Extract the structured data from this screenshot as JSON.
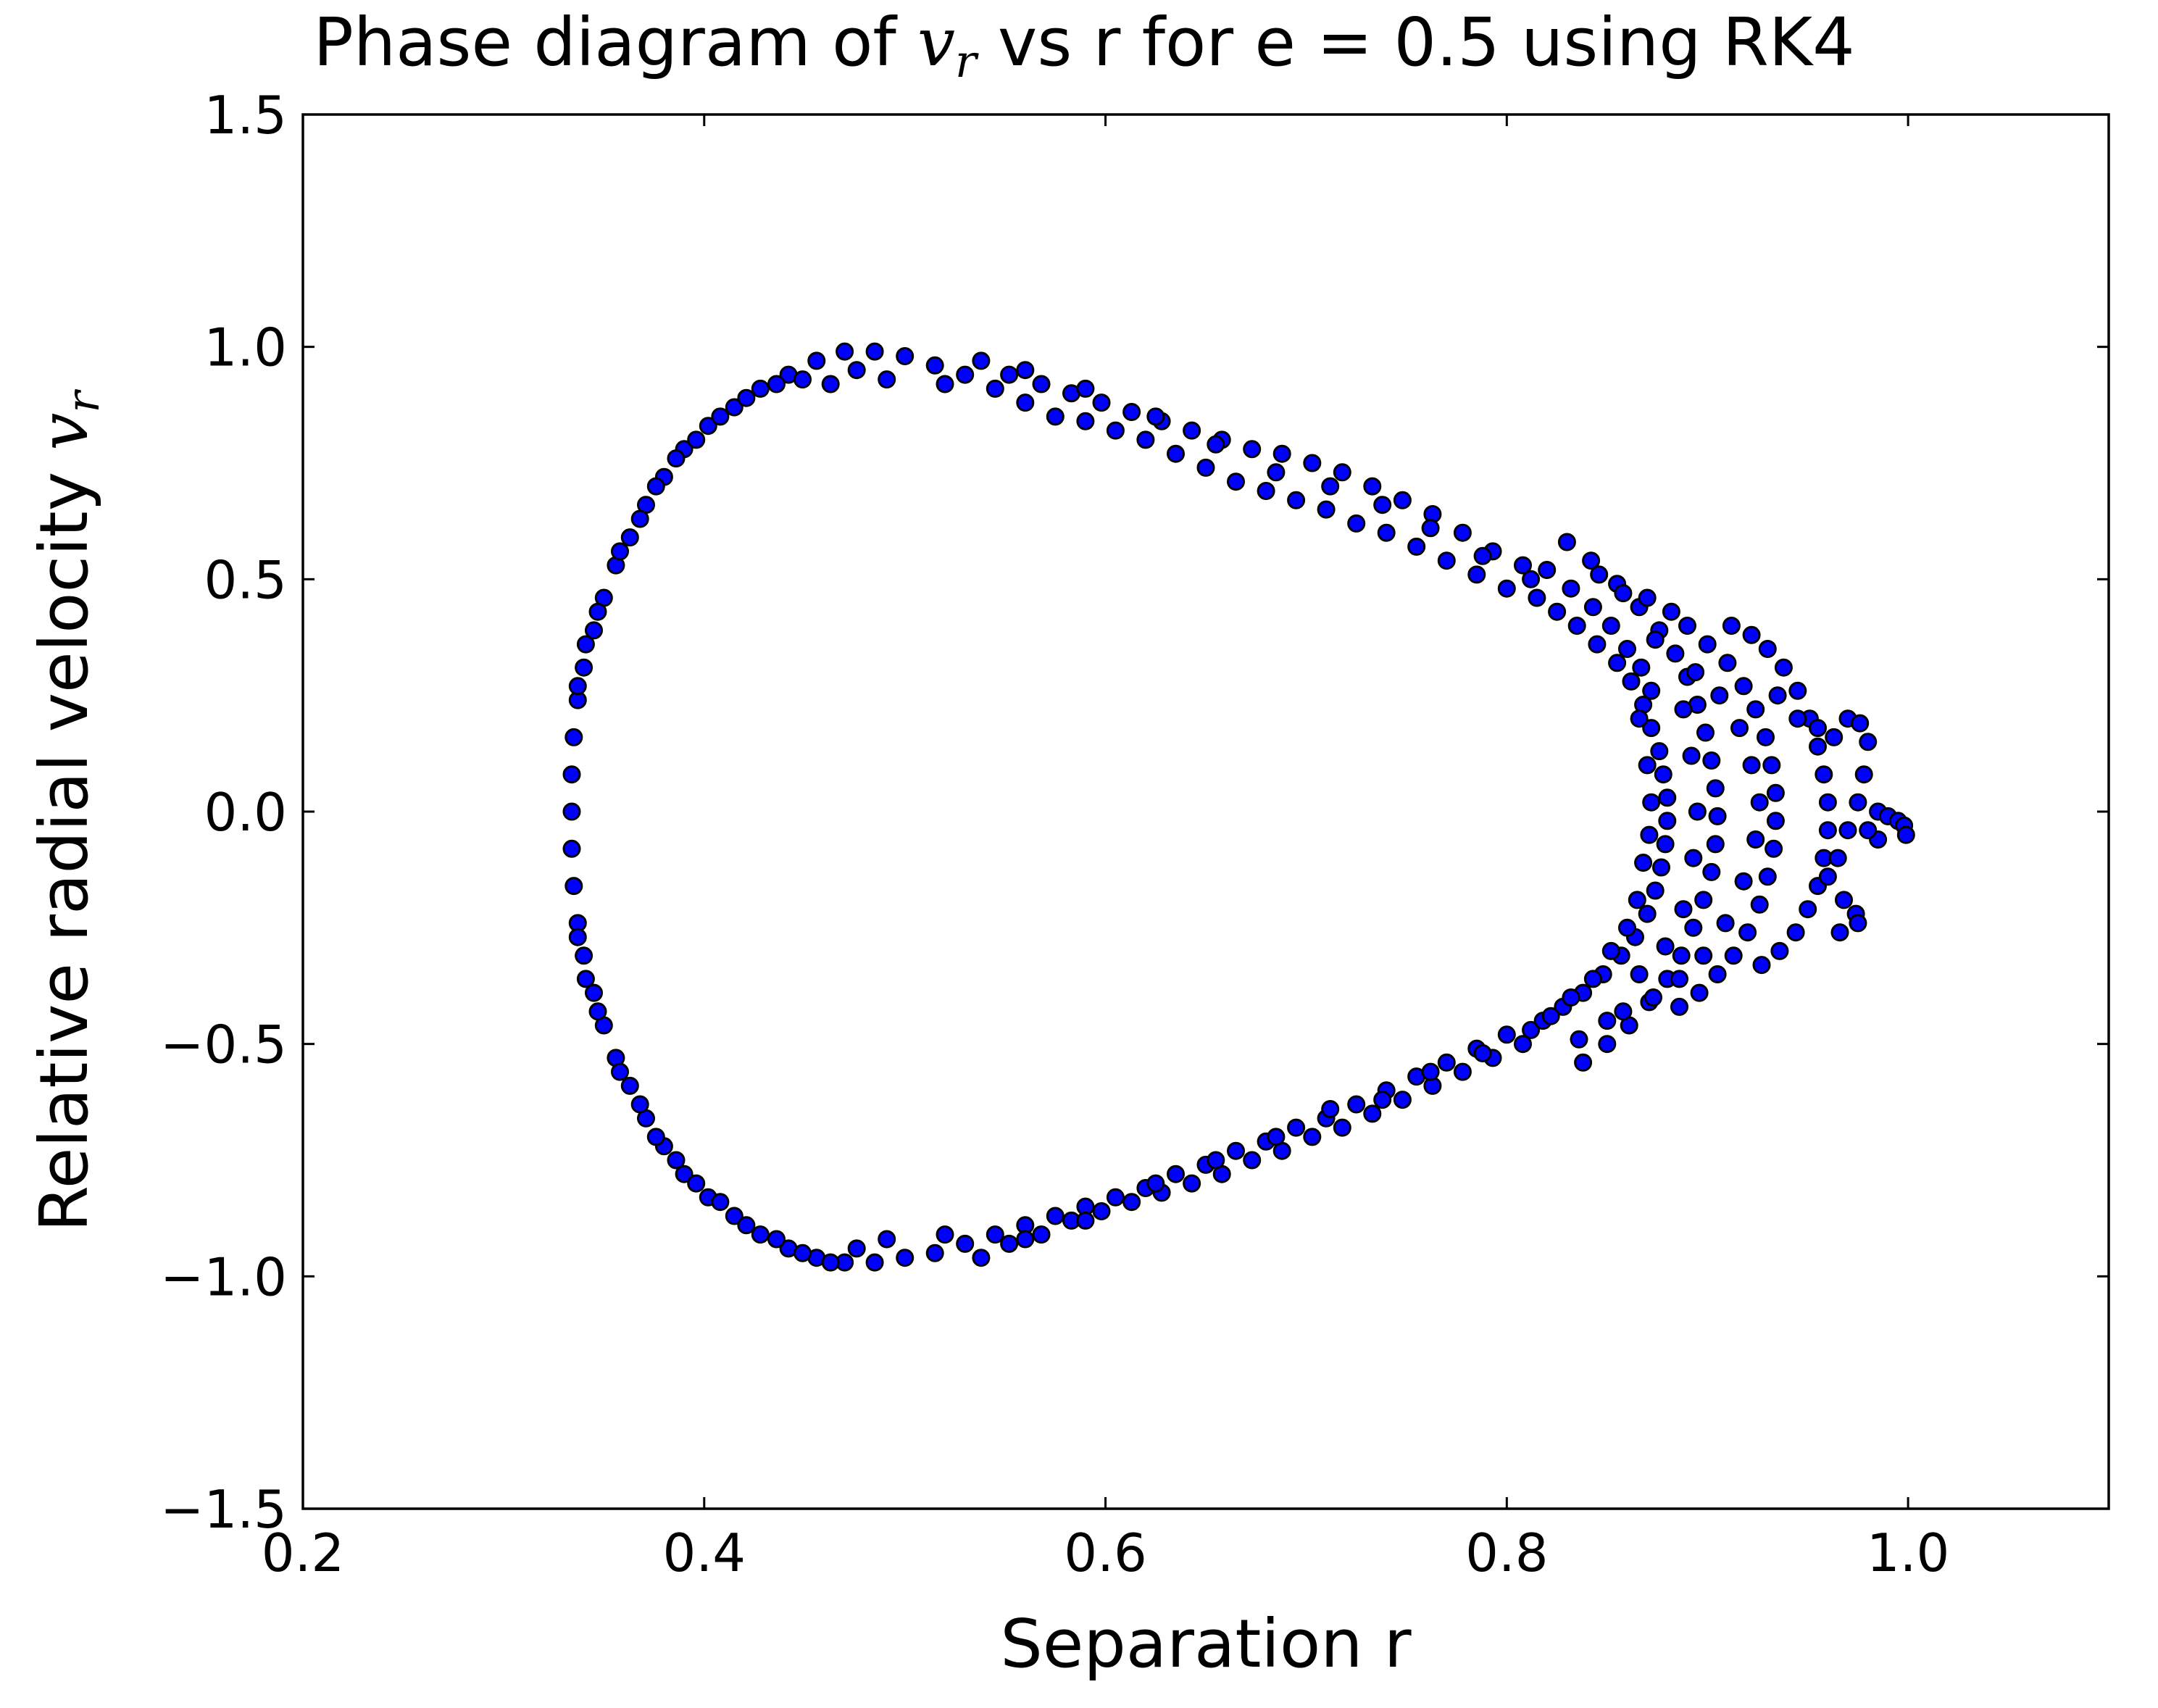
{
  "chart_data": {
    "type": "scatter",
    "title": {
      "prefix": "Phase diagram of ",
      "math_var": "v",
      "math_sub": "r",
      "suffix": " vs r for e = 0.5 using RK4"
    },
    "xlabel": "Separation r",
    "ylabel": {
      "prefix": "Relative radial velocity ",
      "math_var": "v",
      "math_sub": "r"
    },
    "xlim": [
      0.2,
      1.1
    ],
    "ylim": [
      -1.5,
      1.5
    ],
    "xticks": [
      "0.2",
      "0.4",
      "0.6",
      "0.8",
      "1.0"
    ],
    "yticks": [
      "−1.5",
      "−1.0",
      "−0.5",
      "0.0",
      "0.5",
      "1.0",
      "1.5"
    ],
    "grid": false,
    "marker": {
      "shape": "circle",
      "fill": "#0000ff",
      "edge": "#000000"
    },
    "series": [
      {
        "points": [
          [
            0.334,
            0.0
          ],
          [
            0.334,
            0.08
          ],
          [
            0.335,
            0.16
          ],
          [
            0.337,
            0.24
          ],
          [
            0.34,
            0.31
          ],
          [
            0.345,
            0.39
          ],
          [
            0.35,
            0.46
          ],
          [
            0.356,
            0.53
          ],
          [
            0.363,
            0.59
          ],
          [
            0.371,
            0.66
          ],
          [
            0.38,
            0.72
          ],
          [
            0.39,
            0.78
          ],
          [
            0.402,
            0.83
          ],
          [
            0.415,
            0.87
          ],
          [
            0.428,
            0.91
          ],
          [
            0.442,
            0.94
          ],
          [
            0.456,
            0.97
          ],
          [
            0.47,
            0.99
          ],
          [
            0.485,
            0.99
          ],
          [
            0.5,
            0.98
          ],
          [
            0.334,
            -0.08
          ],
          [
            0.335,
            -0.16
          ],
          [
            0.337,
            -0.24
          ],
          [
            0.34,
            -0.31
          ],
          [
            0.345,
            -0.39
          ],
          [
            0.35,
            -0.46
          ],
          [
            0.356,
            -0.53
          ],
          [
            0.363,
            -0.59
          ],
          [
            0.371,
            -0.66
          ],
          [
            0.38,
            -0.72
          ],
          [
            0.39,
            -0.78
          ],
          [
            0.402,
            -0.83
          ],
          [
            0.415,
            -0.87
          ],
          [
            0.428,
            -0.91
          ],
          [
            0.442,
            -0.94
          ],
          [
            0.456,
            -0.96
          ],
          [
            0.47,
            -0.97
          ],
          [
            0.485,
            -0.97
          ],
          [
            0.5,
            -0.96
          ],
          [
            0.337,
            0.27
          ],
          [
            0.341,
            0.36
          ],
          [
            0.347,
            0.43
          ],
          [
            0.358,
            0.56
          ],
          [
            0.368,
            0.63
          ],
          [
            0.376,
            0.7
          ],
          [
            0.386,
            0.76
          ],
          [
            0.396,
            0.8
          ],
          [
            0.408,
            0.85
          ],
          [
            0.421,
            0.89
          ],
          [
            0.436,
            0.92
          ],
          [
            0.449,
            0.93
          ],
          [
            0.463,
            0.92
          ],
          [
            0.476,
            0.95
          ],
          [
            0.491,
            0.93
          ],
          [
            0.337,
            -0.27
          ],
          [
            0.341,
            -0.36
          ],
          [
            0.347,
            -0.43
          ],
          [
            0.358,
            -0.56
          ],
          [
            0.368,
            -0.63
          ],
          [
            0.376,
            -0.7
          ],
          [
            0.386,
            -0.75
          ],
          [
            0.396,
            -0.8
          ],
          [
            0.408,
            -0.84
          ],
          [
            0.421,
            -0.89
          ],
          [
            0.436,
            -0.92
          ],
          [
            0.449,
            -0.95
          ],
          [
            0.463,
            -0.97
          ],
          [
            0.476,
            -0.94
          ],
          [
            0.491,
            -0.92
          ],
          [
            0.515,
            0.96
          ],
          [
            0.53,
            0.94
          ],
          [
            0.545,
            0.91
          ],
          [
            0.56,
            0.88
          ],
          [
            0.575,
            0.85
          ],
          [
            0.59,
            0.84
          ],
          [
            0.605,
            0.82
          ],
          [
            0.62,
            0.8
          ],
          [
            0.635,
            0.77
          ],
          [
            0.65,
            0.74
          ],
          [
            0.665,
            0.71
          ],
          [
            0.68,
            0.69
          ],
          [
            0.695,
            0.67
          ],
          [
            0.71,
            0.65
          ],
          [
            0.725,
            0.62
          ],
          [
            0.74,
            0.6
          ],
          [
            0.755,
            0.57
          ],
          [
            0.77,
            0.54
          ],
          [
            0.785,
            0.51
          ],
          [
            0.8,
            0.48
          ],
          [
            0.52,
            0.92
          ],
          [
            0.538,
            0.97
          ],
          [
            0.552,
            0.94
          ],
          [
            0.568,
            0.92
          ],
          [
            0.583,
            0.9
          ],
          [
            0.598,
            0.88
          ],
          [
            0.613,
            0.86
          ],
          [
            0.628,
            0.84
          ],
          [
            0.643,
            0.82
          ],
          [
            0.658,
            0.8
          ],
          [
            0.673,
            0.78
          ],
          [
            0.688,
            0.77
          ],
          [
            0.703,
            0.75
          ],
          [
            0.718,
            0.73
          ],
          [
            0.733,
            0.7
          ],
          [
            0.748,
            0.67
          ],
          [
            0.763,
            0.64
          ],
          [
            0.778,
            0.6
          ],
          [
            0.793,
            0.56
          ],
          [
            0.808,
            0.53
          ],
          [
            0.56,
            0.95
          ],
          [
            0.59,
            0.91
          ],
          [
            0.625,
            0.85
          ],
          [
            0.655,
            0.79
          ],
          [
            0.685,
            0.73
          ],
          [
            0.712,
            0.7
          ],
          [
            0.738,
            0.66
          ],
          [
            0.762,
            0.61
          ],
          [
            0.788,
            0.55
          ],
          [
            0.812,
            0.5
          ],
          [
            0.515,
            -0.95
          ],
          [
            0.53,
            -0.93
          ],
          [
            0.545,
            -0.91
          ],
          [
            0.56,
            -0.89
          ],
          [
            0.575,
            -0.87
          ],
          [
            0.59,
            -0.85
          ],
          [
            0.605,
            -0.83
          ],
          [
            0.62,
            -0.81
          ],
          [
            0.635,
            -0.78
          ],
          [
            0.65,
            -0.76
          ],
          [
            0.665,
            -0.73
          ],
          [
            0.68,
            -0.71
          ],
          [
            0.695,
            -0.68
          ],
          [
            0.71,
            -0.66
          ],
          [
            0.725,
            -0.63
          ],
          [
            0.74,
            -0.6
          ],
          [
            0.755,
            -0.57
          ],
          [
            0.77,
            -0.54
          ],
          [
            0.785,
            -0.51
          ],
          [
            0.8,
            -0.48
          ],
          [
            0.52,
            -0.91
          ],
          [
            0.538,
            -0.96
          ],
          [
            0.552,
            -0.93
          ],
          [
            0.568,
            -0.91
          ],
          [
            0.583,
            -0.88
          ],
          [
            0.598,
            -0.86
          ],
          [
            0.613,
            -0.84
          ],
          [
            0.628,
            -0.82
          ],
          [
            0.643,
            -0.8
          ],
          [
            0.658,
            -0.78
          ],
          [
            0.673,
            -0.75
          ],
          [
            0.688,
            -0.73
          ],
          [
            0.703,
            -0.7
          ],
          [
            0.718,
            -0.68
          ],
          [
            0.733,
            -0.65
          ],
          [
            0.748,
            -0.62
          ],
          [
            0.763,
            -0.59
          ],
          [
            0.778,
            -0.56
          ],
          [
            0.793,
            -0.53
          ],
          [
            0.808,
            -0.5
          ],
          [
            0.56,
            -0.92
          ],
          [
            0.59,
            -0.88
          ],
          [
            0.625,
            -0.8
          ],
          [
            0.655,
            -0.75
          ],
          [
            0.685,
            -0.7
          ],
          [
            0.712,
            -0.64
          ],
          [
            0.738,
            -0.62
          ],
          [
            0.762,
            -0.56
          ],
          [
            0.788,
            -0.52
          ],
          [
            0.812,
            -0.47
          ],
          [
            0.815,
            0.46
          ],
          [
            0.825,
            0.43
          ],
          [
            0.835,
            0.4
          ],
          [
            0.845,
            0.36
          ],
          [
            0.855,
            0.32
          ],
          [
            0.862,
            0.28
          ],
          [
            0.868,
            0.23
          ],
          [
            0.872,
            0.18
          ],
          [
            0.876,
            0.13
          ],
          [
            0.878,
            0.08
          ],
          [
            0.88,
            0.03
          ],
          [
            0.88,
            -0.02
          ],
          [
            0.879,
            -0.07
          ],
          [
            0.877,
            -0.12
          ],
          [
            0.874,
            -0.17
          ],
          [
            0.87,
            -0.22
          ],
          [
            0.864,
            -0.27
          ],
          [
            0.857,
            -0.31
          ],
          [
            0.848,
            -0.35
          ],
          [
            0.838,
            -0.39
          ],
          [
            0.828,
            -0.42
          ],
          [
            0.818,
            -0.45
          ],
          [
            0.82,
            0.52
          ],
          [
            0.832,
            0.48
          ],
          [
            0.843,
            0.44
          ],
          [
            0.852,
            0.4
          ],
          [
            0.86,
            0.35
          ],
          [
            0.867,
            0.31
          ],
          [
            0.872,
            0.26
          ],
          [
            0.866,
            0.2
          ],
          [
            0.87,
            0.1
          ],
          [
            0.872,
            0.02
          ],
          [
            0.871,
            -0.05
          ],
          [
            0.868,
            -0.11
          ],
          [
            0.865,
            -0.19
          ],
          [
            0.86,
            -0.25
          ],
          [
            0.852,
            -0.3
          ],
          [
            0.843,
            -0.36
          ],
          [
            0.832,
            -0.4
          ],
          [
            0.822,
            -0.44
          ],
          [
            0.83,
            0.58
          ],
          [
            0.842,
            0.54
          ],
          [
            0.855,
            0.49
          ],
          [
            0.866,
            0.44
          ],
          [
            0.876,
            0.39
          ],
          [
            0.884,
            0.34
          ],
          [
            0.89,
            0.29
          ],
          [
            0.895,
            0.23
          ],
          [
            0.899,
            0.17
          ],
          [
            0.902,
            0.11
          ],
          [
            0.904,
            0.05
          ],
          [
            0.905,
            -0.01
          ],
          [
            0.904,
            -0.07
          ],
          [
            0.902,
            -0.13
          ],
          [
            0.898,
            -0.19
          ],
          [
            0.893,
            -0.25
          ],
          [
            0.887,
            -0.31
          ],
          [
            0.88,
            -0.36
          ],
          [
            0.871,
            -0.41
          ],
          [
            0.861,
            -0.46
          ],
          [
            0.85,
            -0.5
          ],
          [
            0.838,
            -0.54
          ],
          [
            0.89,
            0.4
          ],
          [
            0.9,
            0.36
          ],
          [
            0.91,
            0.32
          ],
          [
            0.918,
            0.27
          ],
          [
            0.924,
            0.22
          ],
          [
            0.929,
            0.16
          ],
          [
            0.932,
            0.1
          ],
          [
            0.934,
            0.04
          ],
          [
            0.934,
            -0.02
          ],
          [
            0.933,
            -0.08
          ],
          [
            0.93,
            -0.14
          ],
          [
            0.926,
            -0.2
          ],
          [
            0.92,
            -0.26
          ],
          [
            0.913,
            -0.31
          ],
          [
            0.905,
            -0.35
          ],
          [
            0.896,
            -0.39
          ],
          [
            0.886,
            -0.42
          ],
          [
            0.912,
            0.4
          ],
          [
            0.922,
            0.38
          ],
          [
            0.93,
            0.35
          ],
          [
            0.938,
            0.31
          ],
          [
            0.945,
            0.26
          ],
          [
            0.951,
            0.2
          ],
          [
            0.955,
            0.14
          ],
          [
            0.958,
            0.08
          ],
          [
            0.96,
            0.02
          ],
          [
            0.96,
            -0.04
          ],
          [
            0.958,
            -0.1
          ],
          [
            0.955,
            -0.16
          ],
          [
            0.95,
            -0.21
          ],
          [
            0.944,
            -0.26
          ],
          [
            0.936,
            -0.3
          ],
          [
            0.927,
            -0.33
          ],
          [
            0.935,
            0.25
          ],
          [
            0.945,
            0.2
          ],
          [
            0.955,
            0.18
          ],
          [
            0.963,
            0.16
          ],
          [
            0.97,
            0.2
          ],
          [
            0.976,
            0.19
          ],
          [
            0.98,
            0.15
          ],
          [
            0.978,
            0.08
          ],
          [
            0.975,
            0.02
          ],
          [
            0.97,
            -0.04
          ],
          [
            0.965,
            -0.1
          ],
          [
            0.96,
            -0.14
          ],
          [
            0.968,
            -0.19
          ],
          [
            0.974,
            -0.22
          ],
          [
            0.975,
            -0.24
          ],
          [
            0.966,
            -0.26
          ],
          [
            0.985,
            0.0
          ],
          [
            0.99,
            -0.01
          ],
          [
            0.995,
            -0.02
          ],
          [
            0.998,
            -0.03
          ],
          [
            0.999,
            -0.05
          ],
          [
            0.985,
            -0.06
          ],
          [
            0.98,
            -0.04
          ],
          [
            0.87,
            0.46
          ],
          [
            0.882,
            0.43
          ],
          [
            0.894,
            0.3
          ],
          [
            0.906,
            0.25
          ],
          [
            0.916,
            0.18
          ],
          [
            0.922,
            0.1
          ],
          [
            0.926,
            0.02
          ],
          [
            0.924,
            -0.06
          ],
          [
            0.918,
            -0.15
          ],
          [
            0.909,
            -0.24
          ],
          [
            0.898,
            -0.31
          ],
          [
            0.886,
            -0.36
          ],
          [
            0.873,
            -0.4
          ],
          [
            0.858,
            -0.43
          ],
          [
            0.846,
            0.51
          ],
          [
            0.858,
            0.47
          ],
          [
            0.874,
            0.37
          ],
          [
            0.888,
            0.22
          ],
          [
            0.892,
            0.12
          ],
          [
            0.895,
            0.0
          ],
          [
            0.893,
            -0.1
          ],
          [
            0.888,
            -0.21
          ],
          [
            0.879,
            -0.29
          ],
          [
            0.866,
            -0.35
          ],
          [
            0.85,
            -0.45
          ],
          [
            0.836,
            -0.49
          ]
        ]
      }
    ]
  }
}
